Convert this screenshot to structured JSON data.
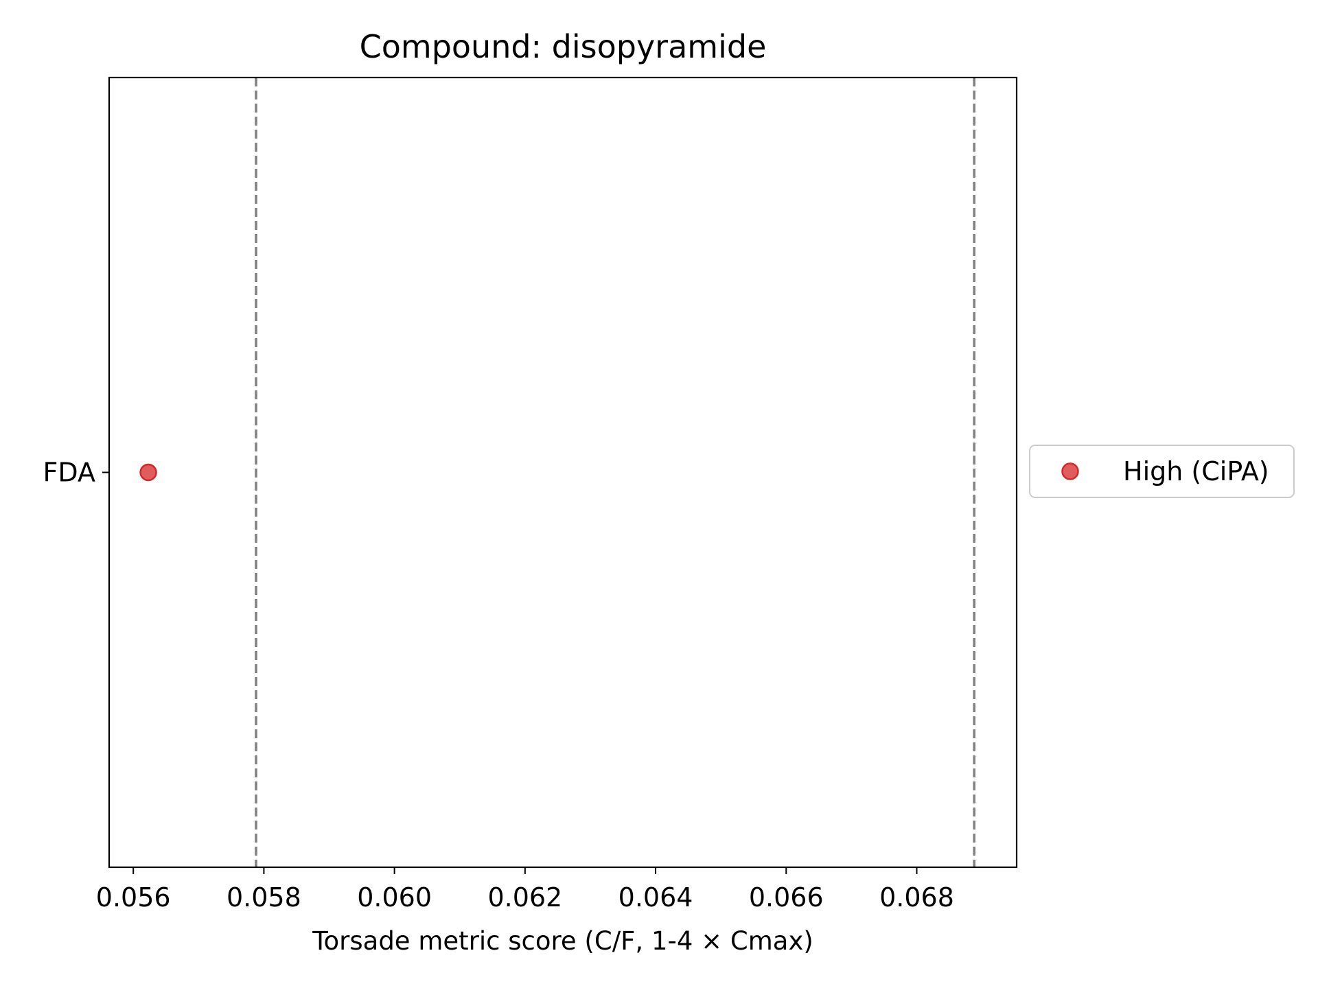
{
  "chart_data": {
    "type": "scatter",
    "title": "Compound: disopyramide",
    "xlabel": "Torsade metric score (C/F, 1-4 × Cmax)",
    "ylabel": "",
    "xlim": [
      0.05563,
      0.06953
    ],
    "x_ticks": [
      0.056,
      0.058,
      0.06,
      0.062,
      0.064,
      0.066,
      0.068
    ],
    "x_tick_labels": [
      "0.056",
      "0.058",
      "0.060",
      "0.062",
      "0.064",
      "0.066",
      "0.068"
    ],
    "categories": [
      "FDA"
    ],
    "series": [
      {
        "name": "High (CiPA)",
        "color": "#d62728",
        "points": [
          {
            "category": "FDA",
            "x": 0.05623
          }
        ]
      }
    ],
    "reference_lines": [
      {
        "x": 0.05788,
        "style": "dashed",
        "color": "#808080"
      },
      {
        "x": 0.06888,
        "style": "dashed",
        "color": "#808080"
      }
    ],
    "grid": false,
    "legend_position": "outside-right"
  }
}
